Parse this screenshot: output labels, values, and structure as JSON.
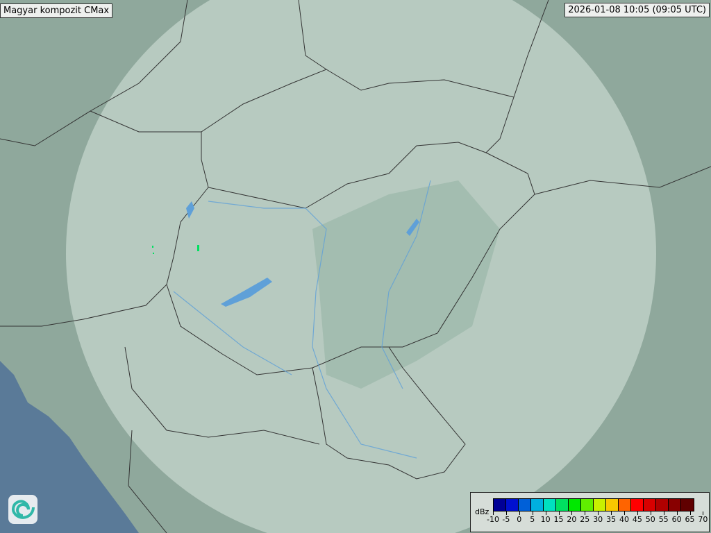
{
  "title": "Magyar kompozit  CMax",
  "timestamp": "2026-01-08 10:05 (09:05 UTC)",
  "legend": {
    "unit": "dBz",
    "ticks": [
      "-10",
      "-5",
      "0",
      "5",
      "10",
      "15",
      "20",
      "25",
      "30",
      "35",
      "40",
      "45",
      "50",
      "55",
      "60",
      "65",
      "70"
    ],
    "colors": [
      "#000096",
      "#0010d0",
      "#0060d8",
      "#00b0e0",
      "#00e0c0",
      "#00e060",
      "#00e800",
      "#60ee00",
      "#c8f000",
      "#f8c800",
      "#ff6400",
      "#ff0000",
      "#d80000",
      "#b00000",
      "#880000",
      "#600000"
    ]
  },
  "logo": "omsz-spiral-logo",
  "colors": {
    "land": "#8fa89c",
    "coverage": "#c8d8d0",
    "water": "#5a7a98",
    "border": "#333333",
    "river": "#5fa0d8"
  }
}
